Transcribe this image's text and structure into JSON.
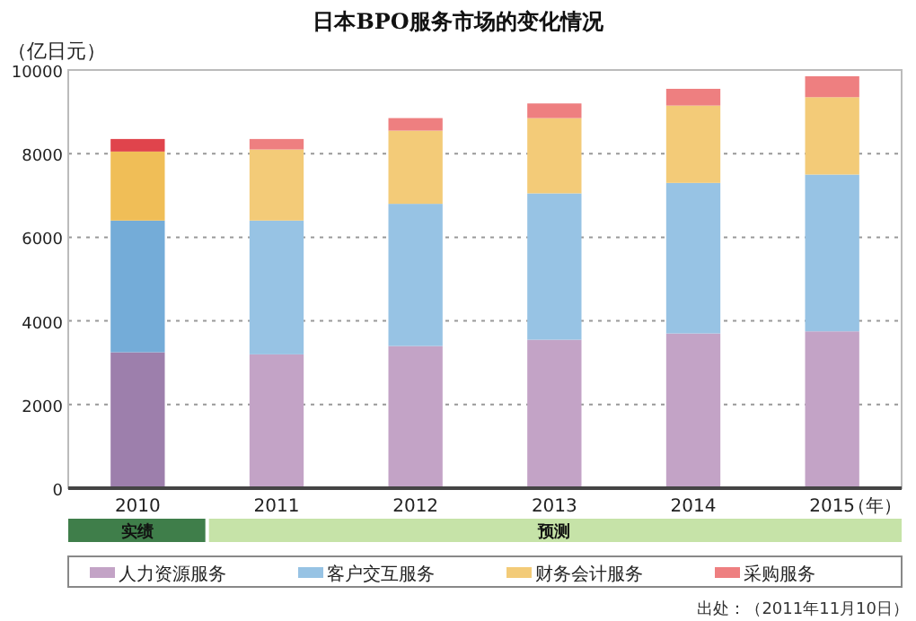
{
  "chart_data": {
    "type": "bar",
    "title": "日本BPO服务市场的变化情况",
    "ylabel": "（亿日元）",
    "xlabel": "（年）",
    "stacked": true,
    "categories": [
      "2010",
      "2011",
      "2012",
      "2013",
      "2014",
      "2015"
    ],
    "series": [
      {
        "name": "人力资源服务",
        "color": "#c3a3c6",
        "colors": [
          "#9d7fac",
          "#c3a3c6",
          "#c3a3c6",
          "#c3a3c6",
          "#c3a3c6",
          "#c3a3c6"
        ],
        "values": [
          3250,
          3200,
          3400,
          3550,
          3700,
          3750
        ]
      },
      {
        "name": "客户交互服务",
        "color": "#97c3e4",
        "colors": [
          "#74acd8",
          "#97c3e4",
          "#97c3e4",
          "#97c3e4",
          "#97c3e4",
          "#97c3e4"
        ],
        "values": [
          3150,
          3200,
          3400,
          3500,
          3600,
          3750
        ]
      },
      {
        "name": "财务会计服务",
        "color": "#f3cb78",
        "colors": [
          "#f0be57",
          "#f3cb78",
          "#f3cb78",
          "#f3cb78",
          "#f3cb78",
          "#f3cb78"
        ],
        "values": [
          1650,
          1700,
          1750,
          1800,
          1850,
          1850
        ]
      },
      {
        "name": "采购服务",
        "color": "#ee7f80",
        "colors": [
          "#e0444c",
          "#ee7f80",
          "#ee7f80",
          "#ee7f80",
          "#ee7f80",
          "#ee7f80"
        ],
        "values": [
          300,
          250,
          300,
          350,
          400,
          500
        ]
      }
    ],
    "ylim": [
      0,
      10000
    ],
    "yticks": [
      0,
      2000,
      4000,
      6000,
      8000,
      10000
    ],
    "grid": "y",
    "legend": "bottom",
    "annotations": [
      "实绩",
      "预测",
      "出处：（2011年11月10日）"
    ]
  }
}
